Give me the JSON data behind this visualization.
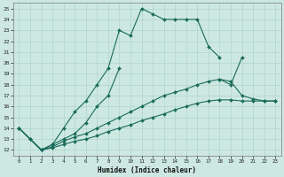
{
  "xlabel": "Humidex (Indice chaleur)",
  "background_color": "#cde8e1",
  "grid_color": "#b0d4cc",
  "line_color": "#1a6b5a",
  "xlim": [
    -0.5,
    23.5
  ],
  "ylim": [
    11.5,
    25.5
  ],
  "xticks": [
    0,
    1,
    2,
    3,
    4,
    5,
    6,
    7,
    8,
    9,
    10,
    11,
    12,
    13,
    14,
    15,
    16,
    17,
    18,
    19,
    20,
    21,
    22,
    23
  ],
  "yticks": [
    12,
    13,
    14,
    15,
    16,
    17,
    18,
    19,
    20,
    21,
    22,
    23,
    24,
    25
  ],
  "lines": [
    {
      "segments": [
        {
          "x": [
            0,
            1,
            2,
            3,
            4,
            5,
            6,
            7,
            8,
            9,
            10,
            11,
            12,
            13,
            14,
            15,
            16,
            17,
            18
          ],
          "y": [
            14,
            13,
            12,
            12.5,
            14,
            15.5,
            16.5,
            18,
            19.5,
            23,
            22.5,
            25,
            24.5,
            24,
            24,
            24,
            24,
            21.5,
            20.5
          ]
        }
      ]
    },
    {
      "segments": [
        {
          "x": [
            0,
            1,
            2,
            3,
            4,
            5,
            6,
            7,
            8,
            9
          ],
          "y": [
            14,
            13,
            12,
            12.5,
            13.0,
            13.5,
            14.5,
            16,
            17,
            19.5
          ]
        },
        {
          "x": [
            18,
            19,
            20
          ],
          "y": [
            18.5,
            18.0,
            20.5
          ]
        }
      ]
    },
    {
      "segments": [
        {
          "x": [
            0,
            2,
            3,
            4,
            5,
            6,
            7,
            8,
            9,
            10,
            11,
            12,
            13,
            14,
            15,
            16,
            17,
            18,
            19,
            20,
            21,
            22,
            23
          ],
          "y": [
            14,
            12,
            12.3,
            12.8,
            13.2,
            13.5,
            14.0,
            14.5,
            15.0,
            15.5,
            16.0,
            16.5,
            17.0,
            17.3,
            17.6,
            18.0,
            18.3,
            18.5,
            18.3,
            17.0,
            16.7,
            16.5,
            16.5
          ]
        }
      ]
    },
    {
      "segments": [
        {
          "x": [
            0,
            2,
            3,
            4,
            5,
            6,
            7,
            8,
            9,
            10,
            11,
            12,
            13,
            14,
            15,
            16,
            17,
            18,
            19,
            20,
            21,
            22,
            23
          ],
          "y": [
            14,
            12,
            12.2,
            12.5,
            12.8,
            13.0,
            13.3,
            13.7,
            14.0,
            14.3,
            14.7,
            15.0,
            15.3,
            15.7,
            16.0,
            16.3,
            16.5,
            16.6,
            16.6,
            16.5,
            16.5,
            16.5,
            16.5
          ]
        }
      ]
    }
  ]
}
